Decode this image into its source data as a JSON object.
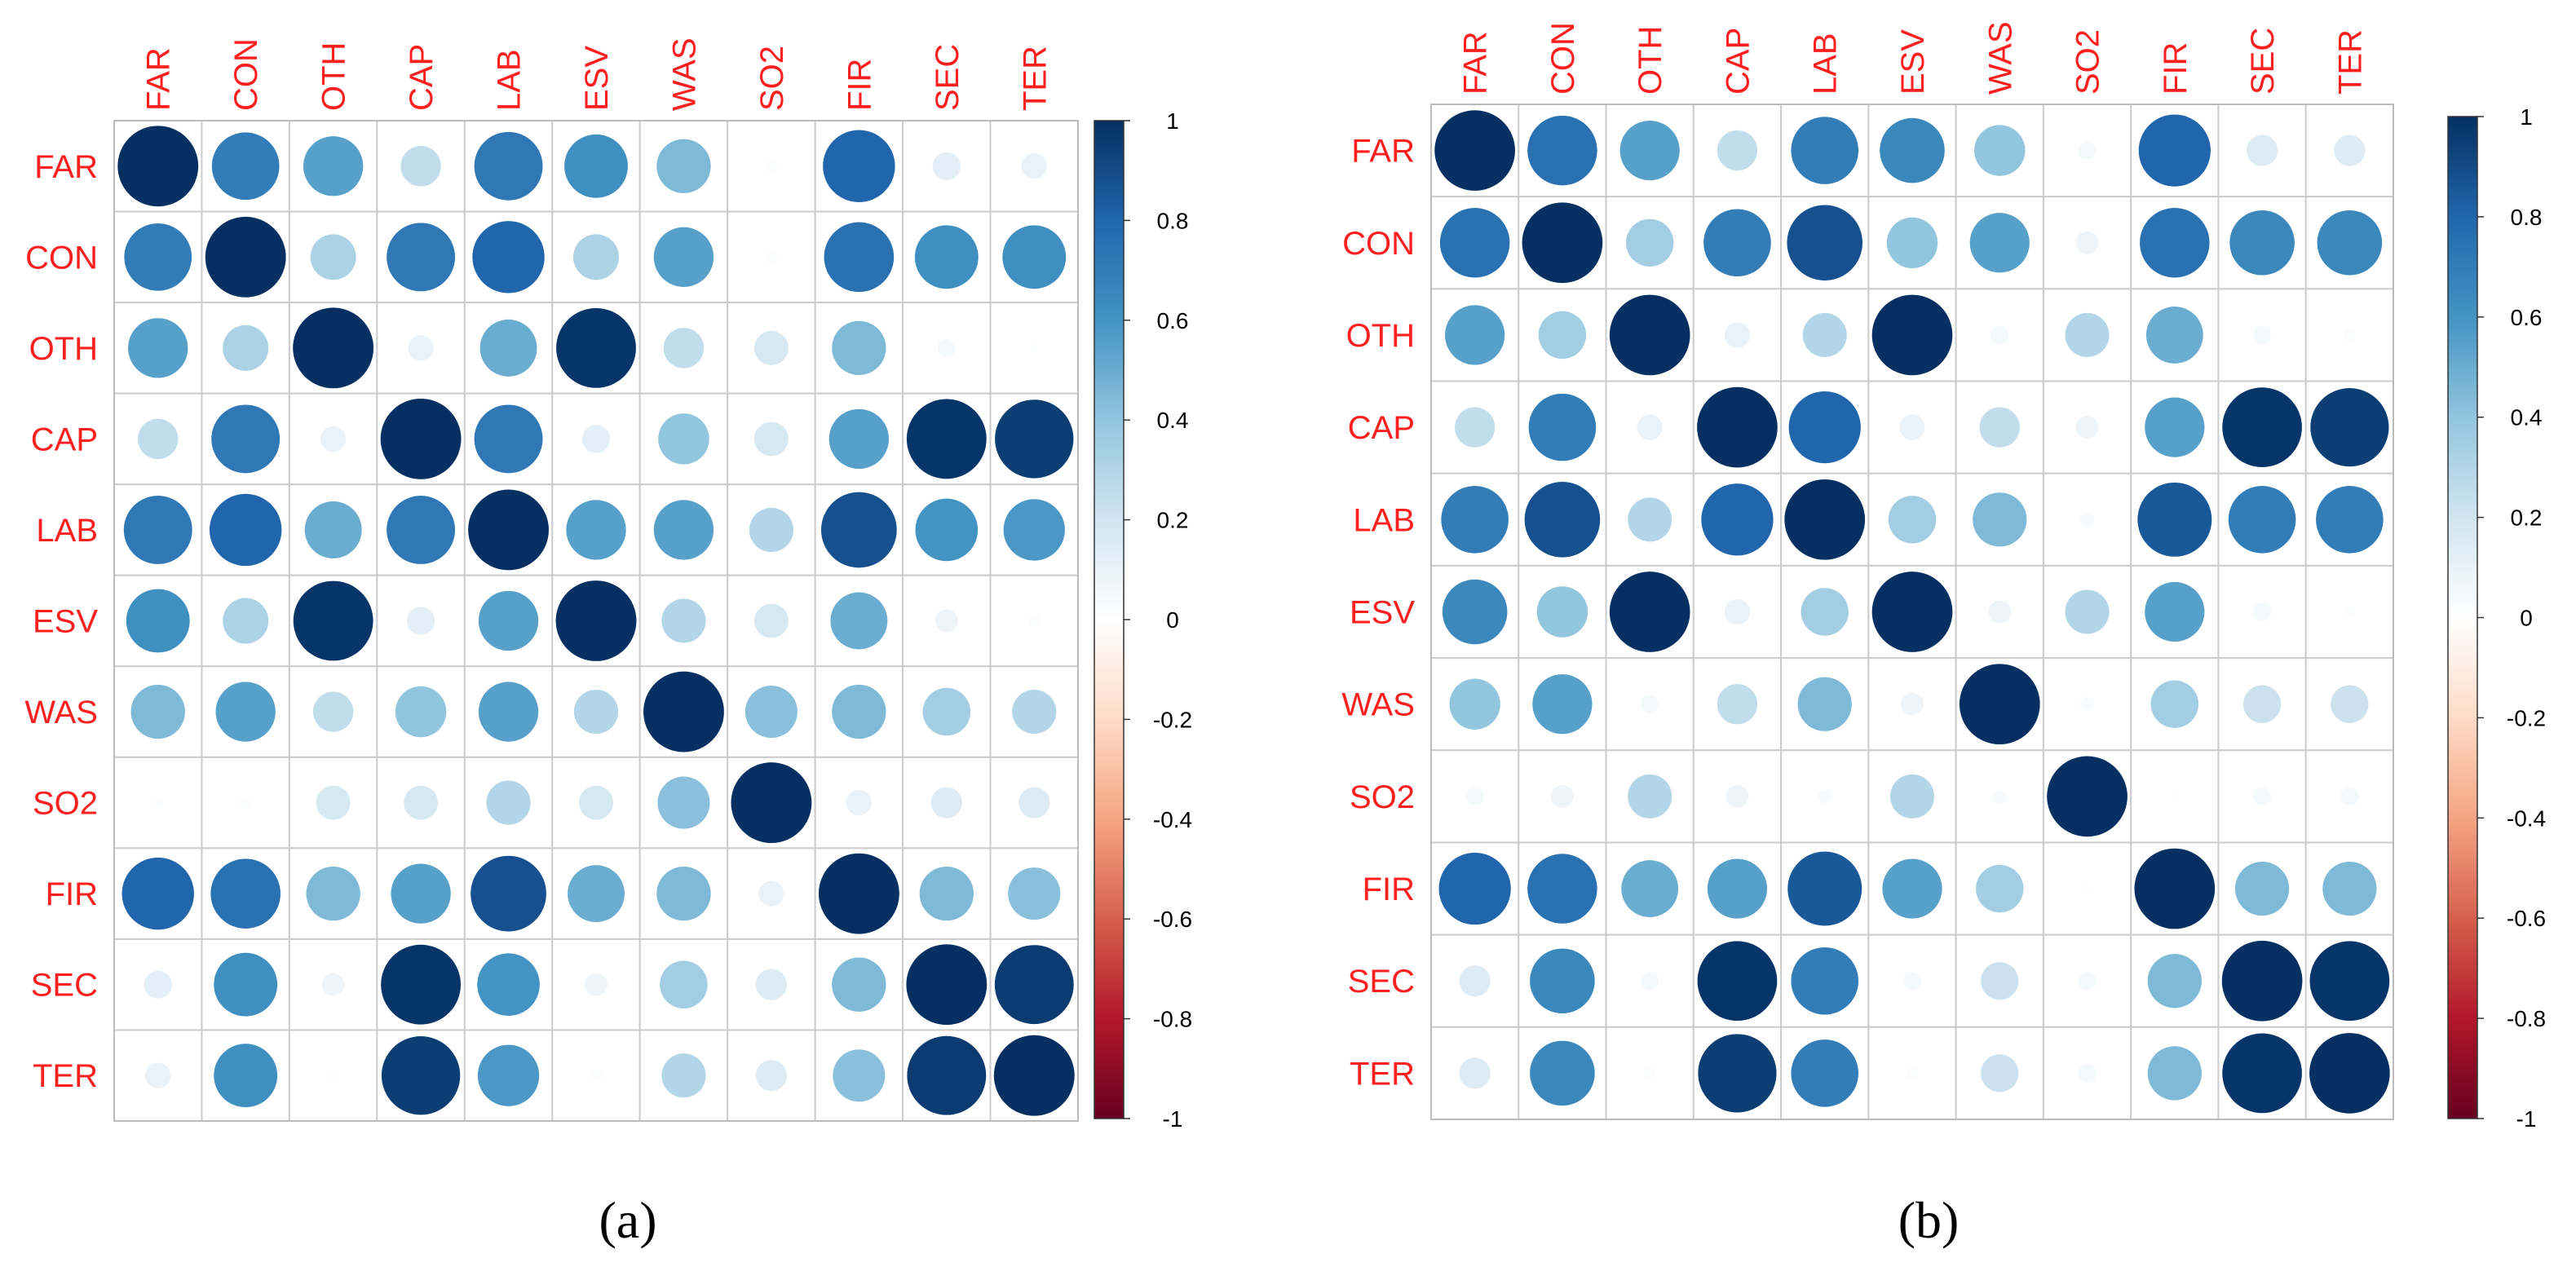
{
  "chart_data": [
    {
      "type": "heatmap",
      "panel_label": "(a)",
      "variables": [
        "FAR",
        "CON",
        "OTH",
        "CAP",
        "LAB",
        "ESV",
        "WAS",
        "SO2",
        "FIR",
        "SEC",
        "TER"
      ],
      "matrix": [
        [
          1.0,
          0.7,
          0.55,
          0.25,
          0.72,
          0.62,
          0.45,
          0.02,
          0.8,
          0.12,
          0.1
        ],
        [
          0.7,
          1.0,
          0.32,
          0.72,
          0.8,
          0.32,
          0.55,
          0.02,
          0.75,
          0.62,
          0.62
        ],
        [
          0.55,
          0.32,
          1.0,
          0.1,
          0.5,
          0.98,
          0.25,
          0.18,
          0.45,
          0.05,
          0.01
        ],
        [
          0.25,
          0.72,
          0.1,
          1.0,
          0.72,
          0.12,
          0.4,
          0.18,
          0.55,
          0.98,
          0.95
        ],
        [
          0.72,
          0.8,
          0.5,
          0.72,
          1.0,
          0.55,
          0.55,
          0.3,
          0.88,
          0.6,
          0.58
        ],
        [
          0.62,
          0.32,
          0.98,
          0.12,
          0.55,
          1.0,
          0.3,
          0.18,
          0.5,
          0.08,
          0.02
        ],
        [
          0.45,
          0.55,
          0.25,
          0.4,
          0.55,
          0.3,
          1.0,
          0.42,
          0.45,
          0.35,
          0.3
        ],
        [
          0.02,
          0.02,
          0.18,
          0.18,
          0.3,
          0.18,
          0.42,
          1.0,
          0.1,
          0.15,
          0.15
        ],
        [
          0.8,
          0.75,
          0.45,
          0.55,
          0.88,
          0.5,
          0.45,
          0.1,
          1.0,
          0.45,
          0.42
        ],
        [
          0.12,
          0.62,
          0.08,
          0.98,
          0.6,
          0.08,
          0.35,
          0.15,
          0.45,
          1.0,
          0.96
        ],
        [
          0.1,
          0.62,
          0.01,
          0.95,
          0.58,
          0.02,
          0.3,
          0.15,
          0.42,
          0.96,
          1.0
        ]
      ],
      "colorbar": {
        "ticks": [
          "1",
          "0.8",
          "0.6",
          "0.4",
          "0.2",
          "0",
          "-0.2",
          "-0.4",
          "-0.6",
          "-0.8",
          "-1"
        ],
        "range": [
          -1,
          1
        ]
      }
    },
    {
      "type": "heatmap",
      "panel_label": "(b)",
      "variables": [
        "FAR",
        "CON",
        "OTH",
        "CAP",
        "LAB",
        "ESV",
        "WAS",
        "SO2",
        "FIR",
        "SEC",
        "TER"
      ],
      "matrix": [
        [
          1.0,
          0.75,
          0.55,
          0.25,
          0.7,
          0.65,
          0.4,
          0.05,
          0.8,
          0.15,
          0.15
        ],
        [
          0.75,
          1.0,
          0.35,
          0.7,
          0.88,
          0.4,
          0.55,
          0.08,
          0.75,
          0.65,
          0.65
        ],
        [
          0.55,
          0.35,
          1.0,
          0.1,
          0.3,
          1.0,
          0.05,
          0.3,
          0.5,
          0.05,
          0.02
        ],
        [
          0.25,
          0.7,
          0.1,
          1.0,
          0.8,
          0.1,
          0.25,
          0.08,
          0.55,
          0.98,
          0.95
        ],
        [
          0.7,
          0.88,
          0.3,
          0.8,
          1.0,
          0.35,
          0.45,
          0.03,
          0.85,
          0.7,
          0.7
        ],
        [
          0.65,
          0.4,
          1.0,
          0.1,
          0.35,
          1.0,
          0.08,
          0.3,
          0.55,
          0.05,
          0.02
        ],
        [
          0.4,
          0.55,
          0.05,
          0.25,
          0.45,
          0.08,
          1.0,
          0.03,
          0.35,
          0.22,
          0.22
        ],
        [
          0.05,
          0.08,
          0.3,
          0.08,
          0.03,
          0.3,
          0.03,
          1.0,
          0.01,
          0.05,
          0.05
        ],
        [
          0.8,
          0.75,
          0.5,
          0.55,
          0.85,
          0.55,
          0.35,
          0.01,
          1.0,
          0.45,
          0.45
        ],
        [
          0.15,
          0.65,
          0.05,
          0.98,
          0.7,
          0.05,
          0.22,
          0.05,
          0.45,
          1.0,
          0.98
        ],
        [
          0.15,
          0.65,
          0.02,
          0.95,
          0.7,
          0.02,
          0.22,
          0.05,
          0.45,
          0.98,
          1.0
        ]
      ],
      "colorbar": {
        "ticks": [
          "1",
          "0.8",
          "0.6",
          "0.4",
          "0.2",
          "0",
          "-0.2",
          "-0.4",
          "-0.6",
          "-0.8",
          "-1"
        ],
        "range": [
          -1,
          1
        ]
      }
    }
  ]
}
